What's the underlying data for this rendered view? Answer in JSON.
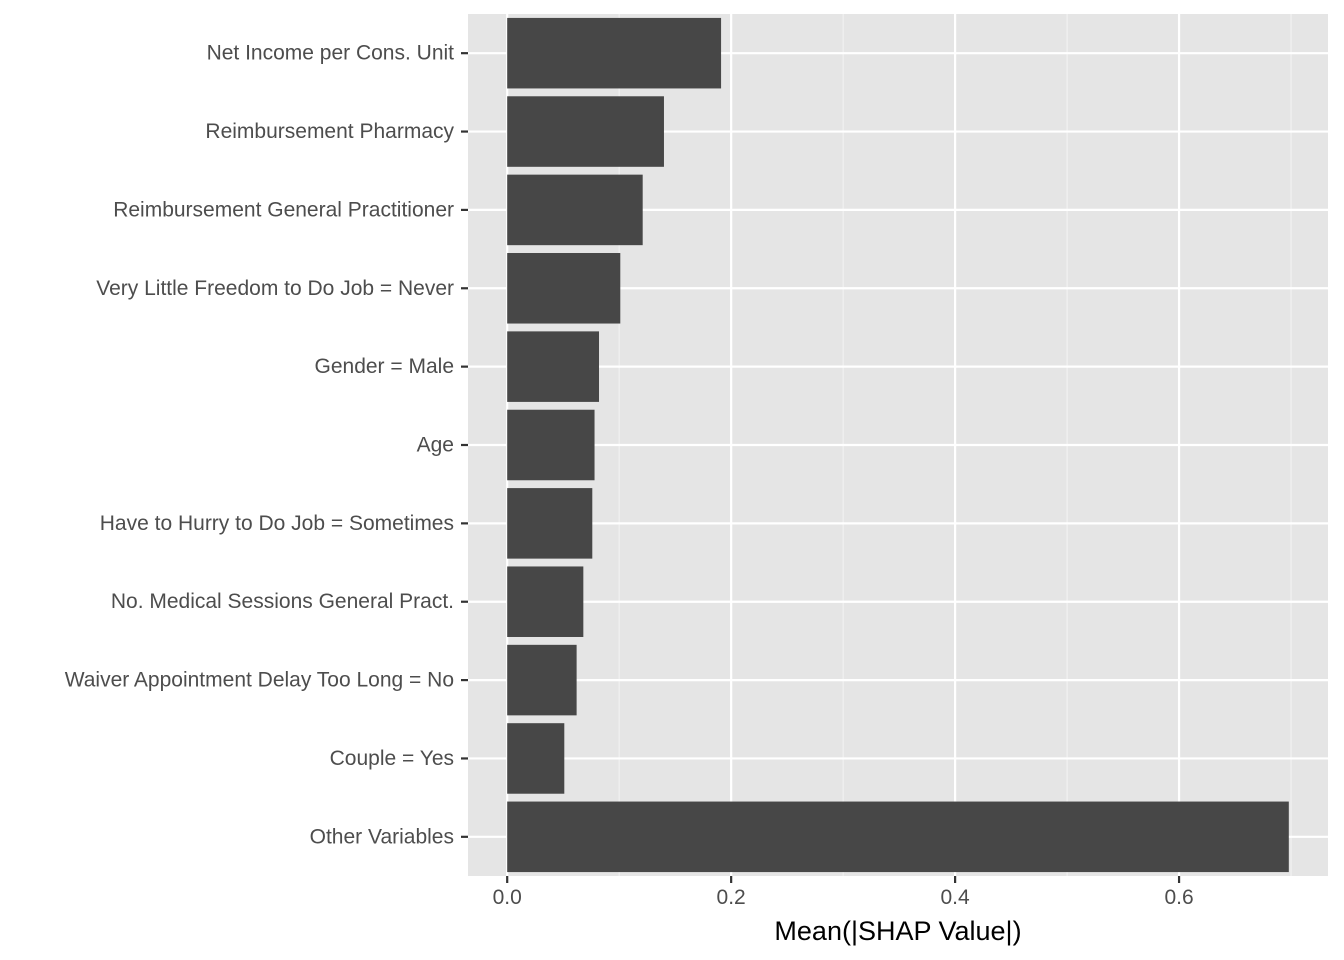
{
  "chart_data": {
    "type": "bar",
    "orientation": "horizontal",
    "title": "",
    "xlabel": "Mean(|SHAP Value|)",
    "ylabel": "",
    "categories": [
      "Net Income per Cons. Unit",
      "Reimbursement Pharmacy",
      "Reimbursement General Practitioner",
      "Very Little Freedom to Do Job = Never",
      "Gender = Male",
      "Age",
      "Have to Hurry to Do Job = Sometimes",
      "No. Medical Sessions General Pract.",
      "Waiver Appointment Delay Too Long = No",
      "Couple = Yes",
      "Other Variables"
    ],
    "values": [
      0.191,
      0.14,
      0.121,
      0.101,
      0.082,
      0.078,
      0.076,
      0.068,
      0.062,
      0.051,
      0.698
    ],
    "xlim": [
      -0.035,
      0.733
    ],
    "xticks": [
      0.0,
      0.2,
      0.4,
      0.6
    ],
    "xtick_labels": [
      "0.0",
      "0.2",
      "0.4",
      "0.6"
    ],
    "grid": true,
    "legend": "none",
    "colors": {
      "bar": "#474747",
      "panel": "#e5e5e5",
      "grid_major": "#ffffff",
      "grid_minor": "#f2f2f2",
      "tick": "#333333"
    }
  }
}
